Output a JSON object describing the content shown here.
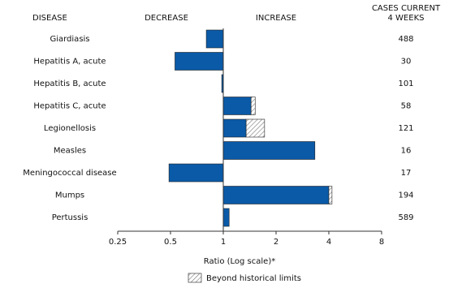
{
  "chart_data": {
    "type": "bar",
    "orientation": "horizontal",
    "log_scale": true,
    "header_disease": "DISEASE",
    "header_decrease": "DECREASE",
    "header_increase": "INCREASE",
    "header_cases": [
      "CASES CURRENT",
      "4 WEEKS"
    ],
    "categories": [
      "Giardiasis",
      "Hepatitis A, acute",
      "Hepatitis B, acute",
      "Hepatitis C, acute",
      "Legionellosis",
      "Measles",
      "Meningococcal disease",
      "Mumps",
      "Pertussis"
    ],
    "values": [
      0.8,
      0.53,
      0.98,
      1.52,
      1.72,
      3.33,
      0.49,
      4.17,
      1.08
    ],
    "historical_limits": [
      null,
      null,
      null,
      1.44,
      1.35,
      null,
      null,
      4.0,
      null
    ],
    "cases": [
      488,
      30,
      101,
      58,
      121,
      16,
      17,
      194,
      589
    ],
    "color": "#0a5aa8",
    "hatch_color": "#888888",
    "xlim": [
      0.25,
      8
    ],
    "xticks": [
      0.25,
      0.5,
      1,
      2,
      4,
      8
    ],
    "xlabel": "Ratio (Log scale)*",
    "legend_label": "Beyond historical limits"
  }
}
